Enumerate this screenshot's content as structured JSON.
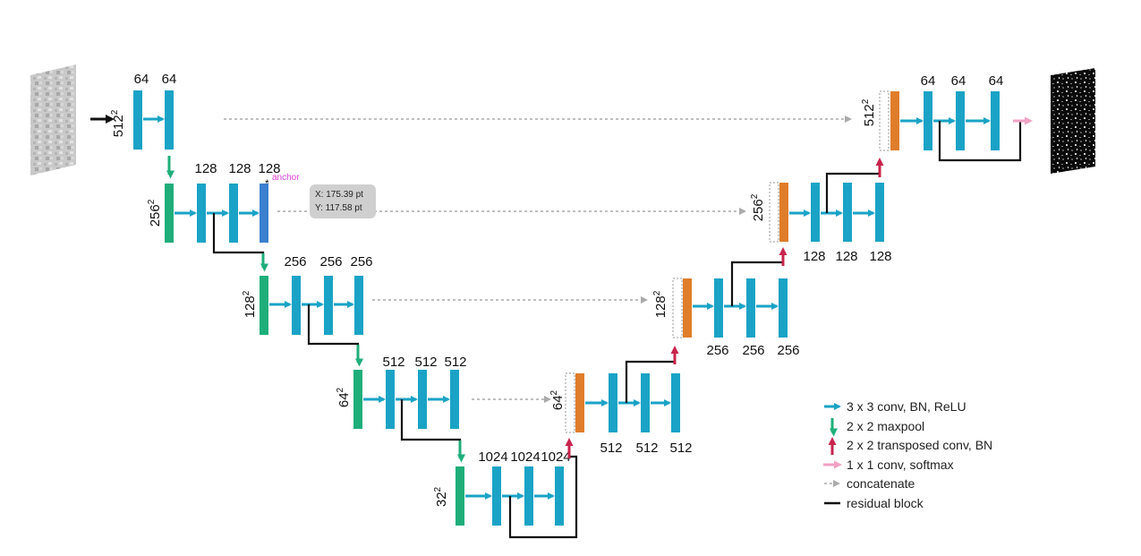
{
  "colors": {
    "conv": "#1aa3c6",
    "pool": "#1fae7a",
    "up": "#c8244c",
    "softmax": "#f0a2c4",
    "concat": "#aaaaaa",
    "residual": "#111111",
    "upblock": "#e07d2a",
    "highlight": "#3a7fd0",
    "anchor": "#e040e0"
  },
  "encoder": {
    "level1": {
      "res": "512",
      "channels": [
        "64",
        "64"
      ]
    },
    "level2": {
      "res": "256",
      "channels": [
        "128",
        "128",
        "128"
      ]
    },
    "level3": {
      "res": "128",
      "channels": [
        "256",
        "256",
        "256"
      ]
    },
    "level4": {
      "res": "64",
      "channels": [
        "512",
        "512",
        "512"
      ]
    },
    "level5": {
      "res": "32",
      "channels": [
        "1024",
        "1024",
        "1024"
      ]
    }
  },
  "decoder": {
    "level4": {
      "res": "64",
      "channels": [
        "512",
        "512",
        "512"
      ]
    },
    "level3": {
      "res": "128",
      "channels": [
        "256",
        "256",
        "256"
      ]
    },
    "level2": {
      "res": "256",
      "channels": [
        "128",
        "128",
        "128"
      ]
    },
    "level1": {
      "res": "512",
      "channels": [
        "64",
        "64",
        "64"
      ]
    }
  },
  "exponent": "2",
  "anchor": {
    "label": "anchor",
    "marker": "*"
  },
  "tooltip": {
    "x": "X: 175.39 pt",
    "y": "Y: 117.58 pt"
  },
  "legend": [
    {
      "icon": "conv-arrow-icon",
      "label": "3 x 3 conv, BN, ReLU"
    },
    {
      "icon": "maxpool-arrow-icon",
      "label": "2 x 2 maxpool"
    },
    {
      "icon": "transposed-conv-arrow-icon",
      "label": "2 x 2 transposed conv, BN"
    },
    {
      "icon": "softmax-arrow-icon",
      "label": "1 x 1 conv, softmax"
    },
    {
      "icon": "concatenate-arrow-icon",
      "label": "concatenate"
    },
    {
      "icon": "residual-block-line-icon",
      "label": "residual block"
    }
  ]
}
